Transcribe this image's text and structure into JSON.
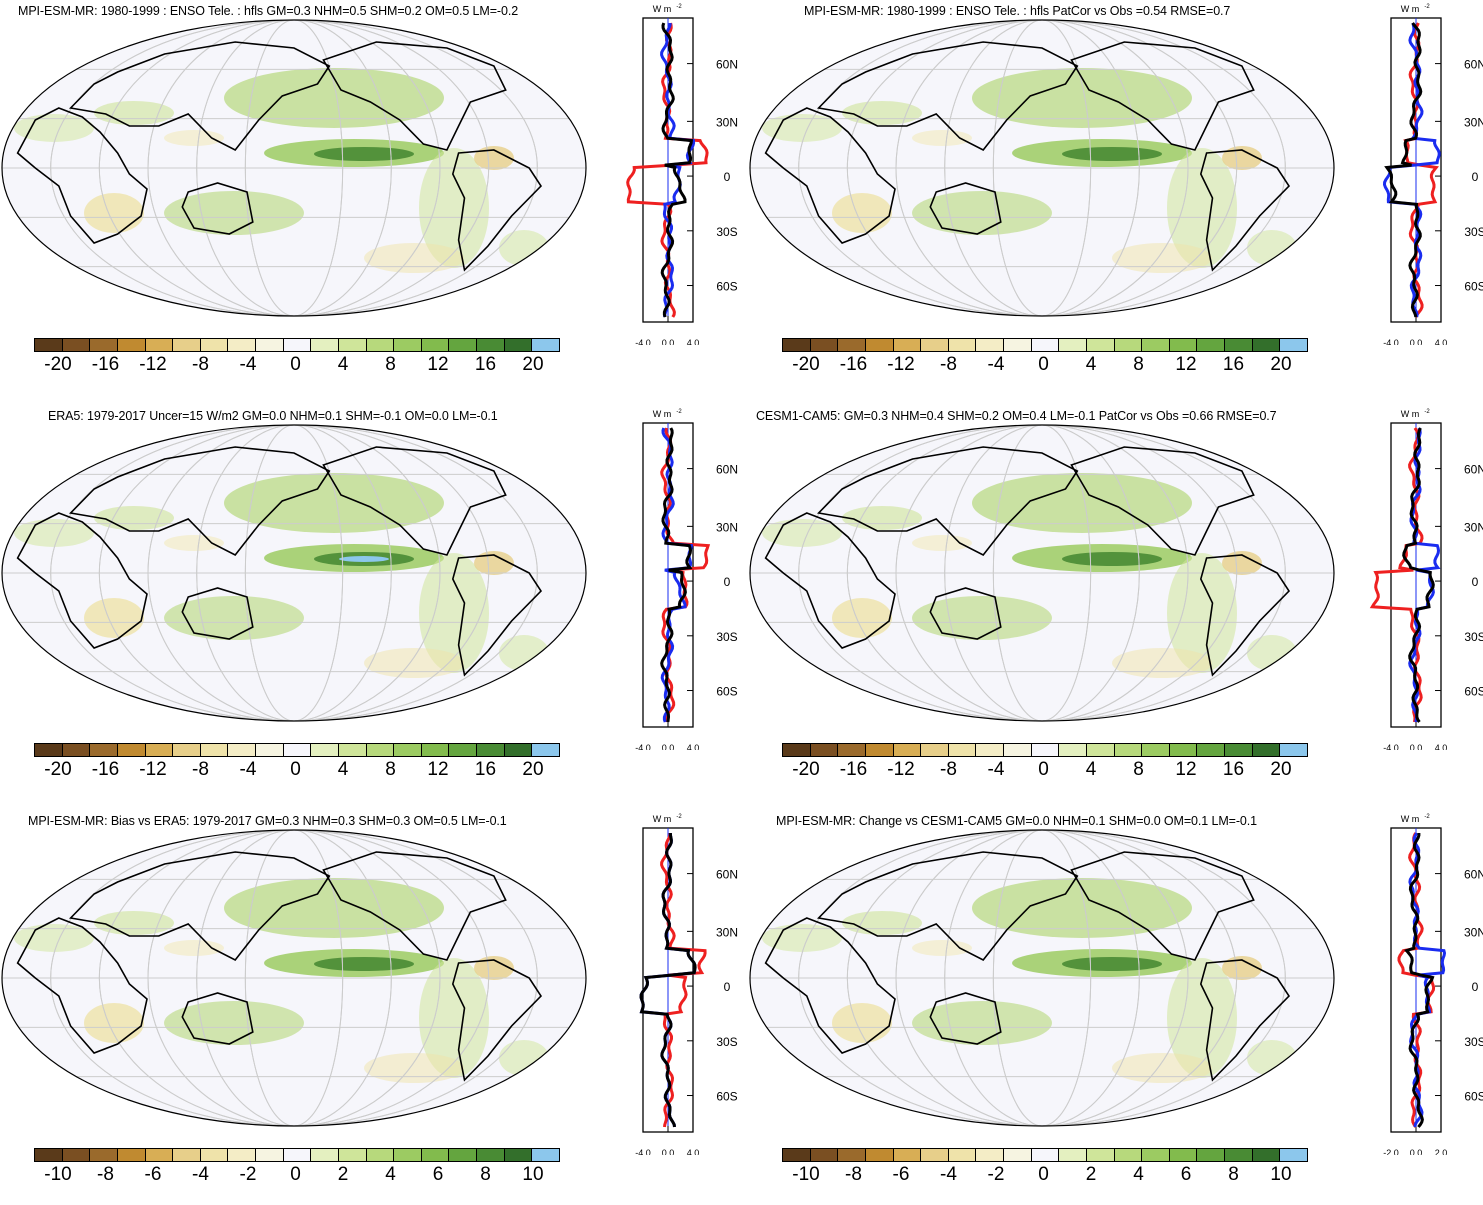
{
  "colors": {
    "scale": [
      "#5a3a1a",
      "#7a4f22",
      "#9a6a2c",
      "#c08a30",
      "#d8ae55",
      "#e7cf8a",
      "#efe3aa",
      "#f4edc6",
      "#f6f4e1",
      "#f6f6fb",
      "#f6f6fb",
      "#e4f0c0",
      "#cfe59a",
      "#b7d97c",
      "#9ccb62",
      "#82bb4d",
      "#64a53f",
      "#498b34",
      "#336f2b",
      "#8cc7ec",
      "#3b86c8"
    ],
    "land_line": "#000000",
    "ocean": "#f6f6fb",
    "grid": "#cccccc",
    "lines": {
      "red": "#ee2020",
      "blue": "#1a2cf0",
      "black": "#000000"
    }
  },
  "icons": [
    "world-map-robinson",
    "zonal-mean-profile"
  ],
  "panels": [
    {
      "title": "MPI-ESM-MR: 1980-1999 : ENSO Tele. : hfls GM=0.3 NHM=0.5 SHM=0.2 OM=0.5 LM=-0.2",
      "colorbar_labels": [
        "-20",
        "-16",
        "-12",
        "-8",
        "-4",
        "0",
        "4",
        "8",
        "12",
        "16",
        "20"
      ],
      "zonal": {
        "units": "W m",
        "units_sup": "-2",
        "xticks": [
          "-4.0",
          "0.0",
          "4.0"
        ],
        "yticks": [
          "60N",
          "30N",
          "0",
          "30S",
          "60S"
        ]
      }
    },
    {
      "title": "MPI-ESM-MR: 1980-1999 : ENSO Tele. : hfls PatCor vs Obs =0.54 RMSE=0.7",
      "colorbar_labels": [
        "-20",
        "-16",
        "-12",
        "-8",
        "-4",
        "0",
        "4",
        "8",
        "12",
        "16",
        "20"
      ],
      "zonal": {
        "units": "W m",
        "units_sup": "-2",
        "xticks": [
          "-4.0",
          "0.0",
          "4.0"
        ],
        "yticks": [
          "60N",
          "30N",
          "0",
          "30S",
          "60S"
        ]
      }
    },
    {
      "title": "ERA5: 1979-2017 Uncer=15 W/m2 GM=0.0 NHM=0.1 SHM=-0.1 OM=0.0 LM=-0.1",
      "colorbar_labels": [
        "-20",
        "-16",
        "-12",
        "-8",
        "-4",
        "0",
        "4",
        "8",
        "12",
        "16",
        "20"
      ],
      "zonal": {
        "units": "W m",
        "units_sup": "-2",
        "xticks": [
          "-4.0",
          "0.0",
          "4.0"
        ],
        "yticks": [
          "60N",
          "30N",
          "0",
          "30S",
          "60S"
        ]
      }
    },
    {
      "title": "CESM1-CAM5: GM=0.3 NHM=0.4 SHM=0.2 OM=0.4 LM=-0.1 PatCor vs Obs =0.66 RMSE=0.7",
      "colorbar_labels": [
        "-20",
        "-16",
        "-12",
        "-8",
        "-4",
        "0",
        "4",
        "8",
        "12",
        "16",
        "20"
      ],
      "zonal": {
        "units": "W m",
        "units_sup": "-2",
        "xticks": [
          "-4.0",
          "0.0",
          "4.0"
        ],
        "yticks": [
          "60N",
          "30N",
          "0",
          "30S",
          "60S"
        ]
      }
    },
    {
      "title": "MPI-ESM-MR: Bias vs ERA5: 1979-2017 GM=0.3 NHM=0.3 SHM=0.3 OM=0.5 LM=-0.1",
      "colorbar_labels": [
        "-10",
        "-8",
        "-6",
        "-4",
        "-2",
        "0",
        "2",
        "4",
        "6",
        "8",
        "10"
      ],
      "zonal": {
        "units": "W m",
        "units_sup": "-2",
        "xticks": [
          "-4.0",
          "0.0",
          "4.0"
        ],
        "yticks": [
          "60N",
          "30N",
          "0",
          "30S",
          "60S"
        ]
      }
    },
    {
      "title": "MPI-ESM-MR: Change vs CESM1-CAM5 GM=0.0 NHM=0.1 SHM=0.0 OM=0.1 LM=-0.1",
      "colorbar_labels": [
        "-10",
        "-8",
        "-6",
        "-4",
        "-2",
        "0",
        "2",
        "4",
        "6",
        "8",
        "10"
      ],
      "zonal": {
        "units": "W m",
        "units_sup": "-2",
        "xticks": [
          "-2.0",
          "0.0",
          "2.0"
        ],
        "yticks": [
          "60N",
          "30N",
          "0",
          "30S",
          "60S"
        ]
      }
    }
  ]
}
